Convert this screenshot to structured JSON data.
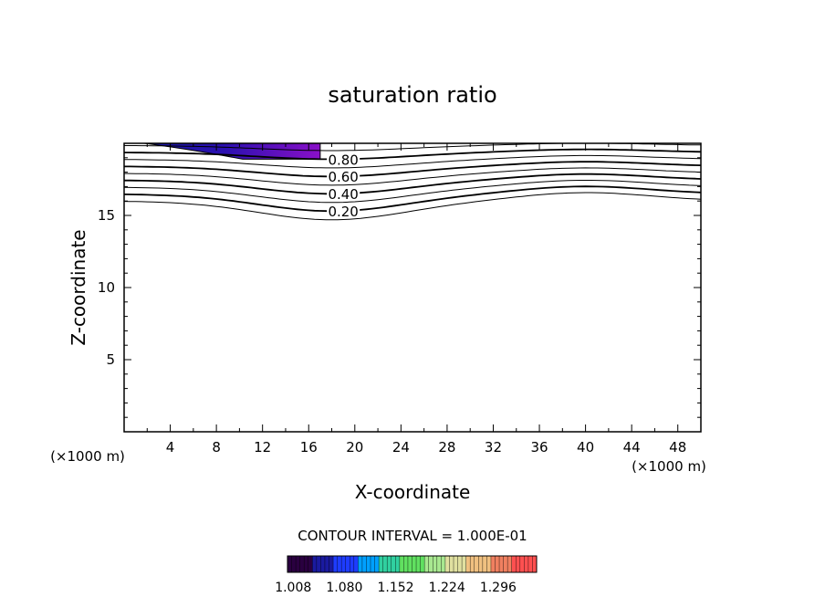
{
  "chart_data": {
    "type": "contour",
    "title": "saturation ratio",
    "xlabel": "X-coordinate",
    "ylabel": "Z-coordinate",
    "x_unit": "(×1000 m)",
    "z_unit": "(×1000 m)",
    "xlim": [
      0,
      50
    ],
    "ylim": [
      0,
      20
    ],
    "x_ticks": [
      4,
      8,
      12,
      16,
      20,
      24,
      28,
      32,
      36,
      40,
      44,
      48
    ],
    "y_ticks": [
      5,
      10,
      15
    ],
    "contour_interval_label": "CONTOUR INTERVAL = 1.000E-01",
    "contour_levels": [
      0.1,
      0.2,
      0.3,
      0.4,
      0.5,
      0.6,
      0.7,
      0.8,
      0.9
    ],
    "contour_labels": [
      {
        "level": 0.2,
        "text": "0.20",
        "x": 17.0
      },
      {
        "level": 0.4,
        "text": "0.40",
        "x": 17.0
      },
      {
        "level": 0.6,
        "text": "0.60",
        "x": 17.0
      },
      {
        "level": 0.8,
        "text": "0.80",
        "x": 17.0
      }
    ],
    "supersaturated_region": {
      "x_range": [
        0,
        17
      ],
      "z_range": [
        18.9,
        20
      ],
      "value_range": [
        1.008,
        1.05
      ]
    },
    "colorbar": {
      "min": 1.0,
      "max": 1.35,
      "tick_values": [
        1.008,
        1.08,
        1.152,
        1.224,
        1.296
      ],
      "tick_labels": [
        "1.008",
        "1.080",
        "1.152",
        "1.224",
        "1.296"
      ],
      "colors": [
        "#2a0040",
        "#1a1aa0",
        "#1e3cff",
        "#00a0ff",
        "#30d0a0",
        "#60e060",
        "#a8e890",
        "#e0e0a0",
        "#f0c080",
        "#f08060",
        "#ff5050"
      ]
    },
    "grid": false,
    "legend": "colorbar-bottom"
  }
}
